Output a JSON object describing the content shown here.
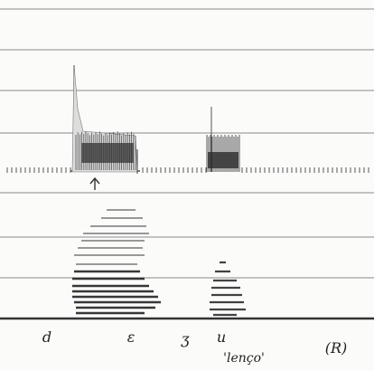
{
  "segment_labels": [
    "d",
    "ε",
    "ʒ",
    "u"
  ],
  "word": "'lenço'",
  "speaker": "(R)"
}
